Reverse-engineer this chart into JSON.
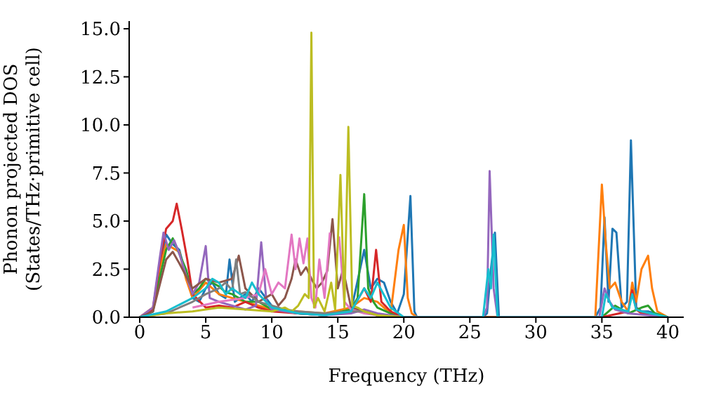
{
  "chart_data": {
    "type": "line",
    "xlabel": "Frequency (THz)",
    "ylabel": "Phonon projected DOS\n(States/THz·primitive cell)",
    "xlim": [
      -0.8,
      41.2
    ],
    "xticks": [
      0,
      5,
      10,
      15,
      20,
      25,
      30,
      35,
      40
    ],
    "ylim": [
      0,
      15.4
    ],
    "yticks": [
      {
        "value": 0,
        "label": "0.0"
      },
      {
        "value": 2.5,
        "label": "2.5"
      },
      {
        "value": 5,
        "label": "5.0"
      },
      {
        "value": 7.5,
        "label": "7.5"
      },
      {
        "value": 10,
        "label": "10.0"
      },
      {
        "value": 12.5,
        "label": "12.5"
      },
      {
        "value": 15,
        "label": "15.0"
      }
    ],
    "grid": false,
    "legend": false,
    "marker": "none",
    "line_style": "solid",
    "series": [
      {
        "color": "#1f77b4",
        "x": [
          0,
          1,
          1.5,
          2,
          2.5,
          3,
          3.5,
          4,
          4.5,
          5,
          5.5,
          6,
          6.5,
          6.8,
          7.2,
          8,
          8.5,
          9,
          10,
          11,
          12,
          14,
          16,
          17,
          17.5,
          18,
          18.5,
          19,
          19.5,
          20,
          20.5,
          20.8,
          21,
          26,
          26.3,
          26.6,
          26.9,
          27.2,
          34.5,
          34.9,
          35.2,
          35.5,
          35.8,
          36.1,
          36.5,
          36.9,
          37.2,
          37.6,
          38,
          38.5,
          39,
          40
        ],
        "values": [
          0,
          0.3,
          2.5,
          4.3,
          3.8,
          3.5,
          2.2,
          1,
          0.8,
          1.5,
          1.8,
          1.2,
          1,
          3,
          0.8,
          1.2,
          0.8,
          1.5,
          0.6,
          0.3,
          0.2,
          0.1,
          0.3,
          3.5,
          1.5,
          2,
          1.8,
          0.8,
          0.2,
          1.2,
          6.3,
          0.3,
          0,
          0,
          0.2,
          2.5,
          4.4,
          0,
          0,
          0.5,
          5.2,
          0.8,
          4.6,
          4.4,
          0.5,
          0.8,
          9.2,
          0.5,
          0.3,
          0.3,
          0.2,
          0
        ]
      },
      {
        "color": "#ff7f0e",
        "x": [
          0,
          1,
          1.5,
          2,
          2.5,
          3,
          3.5,
          4,
          5,
          6,
          7,
          8,
          9,
          10,
          12,
          14,
          16,
          17,
          18,
          19,
          19.6,
          20,
          20.3,
          20.6,
          21,
          34.5,
          35,
          35.3,
          35.6,
          36,
          36.5,
          37,
          37.3,
          37.6,
          38,
          38.5,
          38.8,
          39.2,
          40
        ],
        "values": [
          0,
          0.5,
          2.5,
          3.8,
          3.6,
          3.4,
          2,
          1,
          1.8,
          1.2,
          1,
          0.8,
          0.6,
          0.4,
          0.3,
          0.2,
          0.5,
          1,
          0.8,
          0.2,
          3.5,
          4.8,
          1,
          0.2,
          0,
          0,
          6.9,
          3.8,
          1.5,
          1.8,
          0.8,
          0.3,
          1.8,
          0.8,
          2.5,
          3.2,
          1.5,
          0.3,
          0
        ]
      },
      {
        "color": "#2ca02c",
        "x": [
          0,
          1,
          1.5,
          2,
          2.5,
          3,
          3.5,
          4,
          4.5,
          5,
          5.5,
          6,
          6.5,
          7,
          8,
          9,
          10,
          12,
          14,
          16,
          16.5,
          17,
          17.3,
          17.7,
          18,
          19,
          20,
          35,
          35.5,
          36,
          37,
          38,
          38.5,
          39,
          40
        ],
        "values": [
          0,
          0.3,
          2,
          3.5,
          4.1,
          3.3,
          2.5,
          1.2,
          1.5,
          2,
          1.8,
          1.6,
          1.3,
          1.2,
          0.8,
          0.8,
          0.4,
          0.2,
          0.1,
          0.4,
          1,
          6.4,
          1.5,
          0.8,
          0.5,
          0.2,
          0,
          0,
          0.3,
          0.6,
          0.2,
          0.5,
          0.6,
          0.2,
          0
        ]
      },
      {
        "color": "#d62728",
        "x": [
          0,
          1,
          1.5,
          2,
          2.5,
          2.8,
          3.2,
          3.6,
          4,
          5,
          6,
          7,
          8,
          9,
          10,
          12,
          14,
          16,
          17,
          17.5,
          17.9,
          18.3,
          19,
          20,
          35,
          37,
          37.3,
          37.6,
          38,
          40
        ],
        "values": [
          0,
          0.4,
          2.8,
          4.6,
          5,
          5.9,
          4.5,
          3,
          1.2,
          0.5,
          0.6,
          0.5,
          0.8,
          0.5,
          0.3,
          0.2,
          0.1,
          0.3,
          1.5,
          0.8,
          3.5,
          0.8,
          0.3,
          0,
          0,
          0.3,
          1.4,
          0.4,
          0.2,
          0
        ]
      },
      {
        "color": "#9467bd",
        "x": [
          0,
          1,
          1.5,
          1.8,
          2.2,
          2.6,
          3,
          3.5,
          4,
          4.5,
          5,
          5.3,
          6,
          7,
          8,
          8.8,
          9.2,
          9.6,
          10,
          12,
          14,
          16,
          17,
          18,
          20,
          26,
          26.3,
          26.5,
          26.8,
          27.1,
          34.8,
          35.2,
          35.6,
          36,
          37,
          40
        ],
        "values": [
          0,
          0.5,
          3,
          4.4,
          3.5,
          4,
          3.3,
          2.2,
          1.2,
          1.8,
          3.7,
          1,
          0.8,
          0.6,
          0.4,
          0.6,
          3.9,
          0.8,
          0.4,
          0.2,
          0.1,
          0.2,
          0.4,
          0.2,
          0,
          0,
          0.5,
          7.6,
          1.5,
          0,
          0,
          1.5,
          0.8,
          0.4,
          0.2,
          0
        ]
      },
      {
        "color": "#8c564b",
        "x": [
          0,
          1,
          2,
          2.5,
          3,
          4,
          5,
          6,
          7,
          7.5,
          8,
          9,
          10,
          10.5,
          11,
          11.5,
          11.8,
          12.2,
          12.6,
          13,
          13.4,
          13.8,
          14.2,
          14.6,
          15,
          15.4,
          16,
          17,
          18,
          20
        ],
        "values": [
          0,
          0.3,
          3,
          3.4,
          2.8,
          1.5,
          2,
          1.8,
          2,
          3.2,
          1.5,
          0.8,
          1.2,
          0.6,
          1,
          2,
          3,
          2.2,
          2.6,
          2,
          1.5,
          1.8,
          2.4,
          5.1,
          1.5,
          2.5,
          0.5,
          0.3,
          0.1,
          0
        ]
      },
      {
        "color": "#e377c2",
        "x": [
          4,
          6,
          8,
          9,
          9.5,
          10,
          10.5,
          11,
          11.5,
          11.8,
          12.1,
          12.4,
          12.7,
          13,
          13.3,
          13.6,
          14,
          14.4,
          14.8,
          15.1,
          15.5,
          16,
          16.5,
          17,
          18,
          20
        ],
        "values": [
          0.5,
          0.8,
          1,
          1.2,
          2.5,
          1.2,
          1.8,
          1.5,
          4.3,
          2.5,
          4.1,
          2.8,
          4.1,
          1,
          0.5,
          3,
          1,
          4.4,
          null,
          4.2,
          0.8,
          0.4,
          0.3,
          0.2,
          0.1,
          0
        ]
      },
      {
        "color": "#7f7f7f",
        "x": [
          0,
          2,
          4,
          5,
          6,
          6.5,
          7,
          7.3,
          7.6,
          8,
          9,
          10,
          11,
          12,
          14,
          16,
          17,
          18,
          20
        ],
        "values": [
          0,
          0.2,
          0.8,
          1.2,
          1.5,
          1.8,
          1.4,
          3,
          1.2,
          1.3,
          0.8,
          0.6,
          0.4,
          0.3,
          0.2,
          0.3,
          0.3,
          0.1,
          0
        ]
      },
      {
        "color": "#bcbd22",
        "x": [
          0,
          2,
          4,
          6,
          8,
          10,
          11,
          11.5,
          12,
          12.5,
          12.8,
          13,
          13.2,
          13.5,
          14,
          14.5,
          14.8,
          15.2,
          15.5,
          15.8,
          16.1,
          16.5,
          17,
          18,
          20
        ],
        "values": [
          0,
          0.2,
          0.3,
          0.5,
          0.4,
          0.3,
          0.5,
          0.3,
          0.6,
          1.2,
          1,
          14.8,
          0.5,
          1,
          0.3,
          1.8,
          0.4,
          7.4,
          0.5,
          9.9,
          0.6,
          0.5,
          0.3,
          0.1,
          0
        ]
      },
      {
        "color": "#17becf",
        "x": [
          0,
          2,
          4,
          5,
          5.5,
          6,
          6.5,
          7,
          8,
          8.5,
          9,
          10,
          12,
          14,
          16,
          17,
          17.5,
          18,
          19,
          20,
          26,
          26.4,
          26.6,
          26.8,
          27.1,
          35,
          35.3,
          35.8,
          37,
          37.3,
          37.6,
          38,
          40
        ],
        "values": [
          0,
          0.3,
          1,
          1.5,
          2,
          1.8,
          1.2,
          1.5,
          1,
          1.8,
          1.2,
          0.5,
          0.2,
          0.1,
          0.3,
          1.5,
          1,
          1.8,
          0.5,
          0,
          0,
          2.5,
          1.5,
          4.3,
          0,
          0,
          1.2,
          0.5,
          0.3,
          1.2,
          0.4,
          0.3,
          0
        ]
      }
    ]
  }
}
